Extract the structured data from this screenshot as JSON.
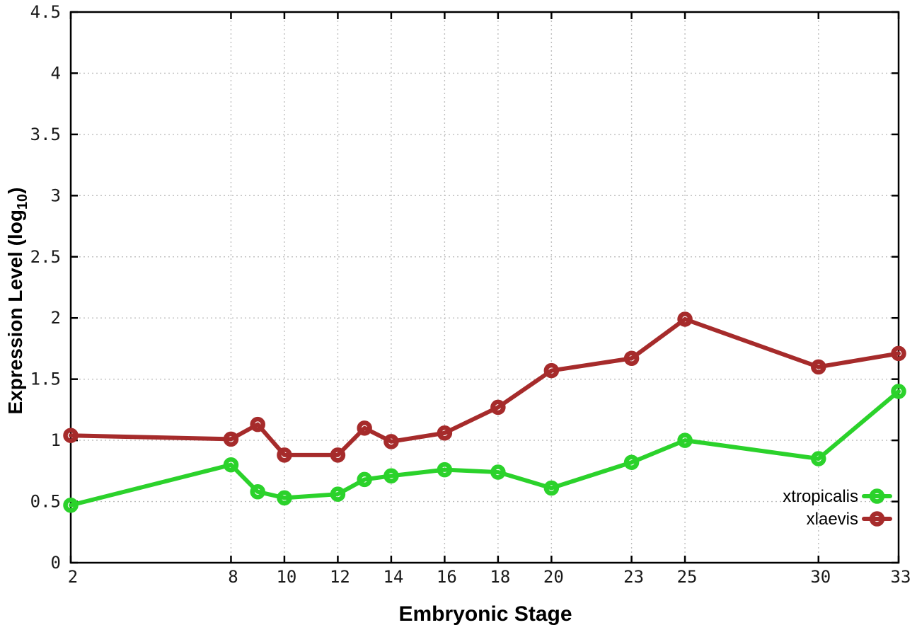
{
  "chart_data": {
    "type": "line",
    "title": "",
    "xlabel": "Embryonic Stage",
    "ylabel_main": "Expression Level (log",
    "ylabel_sub": "10",
    "ylabel_close": ")",
    "x": [
      2,
      8,
      9,
      10,
      12,
      13,
      14,
      16,
      18,
      20,
      23,
      25,
      30,
      33
    ],
    "series": [
      {
        "name": "xtropicalis",
        "color": "#2bd22b",
        "values": [
          0.47,
          0.8,
          0.58,
          0.53,
          0.56,
          0.68,
          0.71,
          0.76,
          0.74,
          0.61,
          0.82,
          1.0,
          0.85,
          1.4
        ]
      },
      {
        "name": "xlaevis",
        "color": "#a62b2b",
        "values": [
          1.04,
          1.01,
          1.13,
          0.88,
          0.88,
          1.1,
          0.99,
          1.06,
          1.27,
          1.57,
          1.67,
          1.99,
          1.6,
          1.71
        ]
      }
    ],
    "xticks": [
      2,
      8,
      10,
      12,
      14,
      16,
      18,
      20,
      23,
      25,
      30,
      33
    ],
    "xtick_labels": [
      "2",
      "8",
      "10",
      "12",
      "14",
      "16",
      "18",
      "20",
      "23",
      "25",
      "30",
      "33"
    ],
    "yticks": [
      0,
      0.5,
      1,
      1.5,
      2,
      2.5,
      3,
      3.5,
      4,
      4.5
    ],
    "ytick_labels": [
      "0",
      "0.5",
      "1",
      "1.5",
      "2",
      "2.5",
      "3",
      "3.5",
      "4",
      "4.5"
    ],
    "xlim": [
      2,
      33
    ],
    "ylim": [
      0,
      4.5
    ],
    "grid": true,
    "grid_color": "#bfbfbf",
    "border_color": "#000000",
    "legend_position": "bottom-right",
    "legend_entries": [
      "xtropicalis",
      "xlaevis"
    ]
  }
}
